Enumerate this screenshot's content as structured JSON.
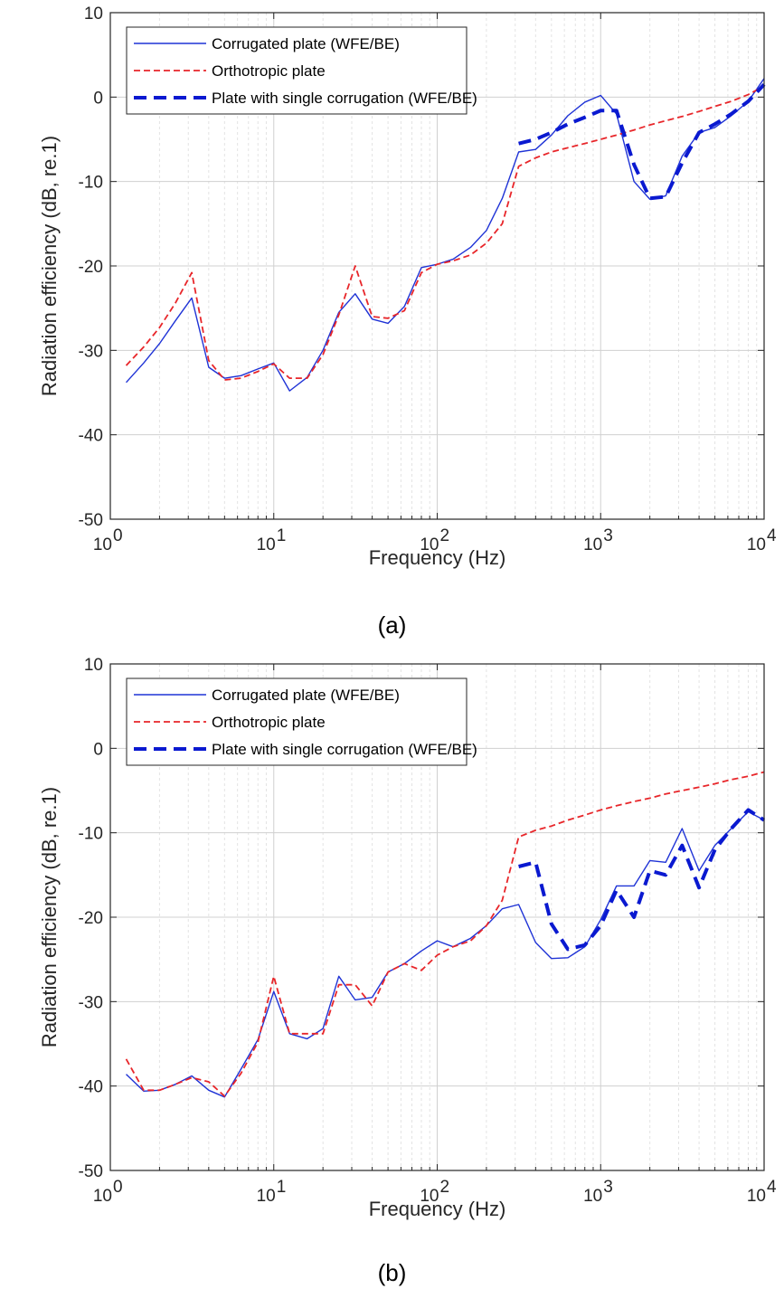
{
  "chart_data": [
    {
      "type": "line",
      "panel_label": "(a)",
      "xlabel": "Frequency (Hz)",
      "ylabel": "Radiation efficiency (dB, re.1)",
      "xscale": "log",
      "xlim": [
        1,
        10000
      ],
      "ylim": [
        -50,
        10
      ],
      "xtick_bases": [
        "10",
        "10",
        "10",
        "10",
        "10"
      ],
      "xtick_exps": [
        "0",
        "1",
        "2",
        "3",
        "4"
      ],
      "yticks": [
        "10",
        "0",
        "-10",
        "-20",
        "-30",
        "-40",
        "-50"
      ],
      "grid": true,
      "legend_position": "top-left",
      "series": [
        {
          "name": "Corrugated plate (WFE/BE)",
          "color": "#1f33d6",
          "style": "solid",
          "x": [
            1.25,
            1.6,
            2,
            2.5,
            3.15,
            4,
            5,
            6.3,
            8,
            10,
            12.5,
            16,
            20,
            25,
            31.5,
            40,
            50,
            63,
            80,
            100,
            125,
            160,
            200,
            250,
            315,
            400,
            500,
            630,
            800,
            1000,
            1250,
            1600,
            2000,
            2500,
            3150,
            4000,
            5000,
            6300,
            8000,
            10000
          ],
          "y": [
            -33.8,
            -31.5,
            -29.2,
            -26.5,
            -23.8,
            -32,
            -33.3,
            -33,
            -32.2,
            -31.5,
            -34.8,
            -33.2,
            -30,
            -25.5,
            -23.3,
            -26.3,
            -26.8,
            -24.8,
            -20.2,
            -19.8,
            -19.2,
            -17.8,
            -15.8,
            -12,
            -6.5,
            -6.2,
            -4.5,
            -2.2,
            -0.6,
            0.2,
            -2,
            -10,
            -12.1,
            -11.7,
            -7,
            -4.2,
            -3.6,
            -2.2,
            -0.5,
            2.2
          ]
        },
        {
          "name": "Orthotropic plate",
          "color": "#e8262a",
          "style": "dashed",
          "x": [
            1.25,
            1.6,
            2,
            2.5,
            3.15,
            4,
            5,
            6.3,
            8,
            10,
            12.5,
            16,
            20,
            25,
            31.5,
            40,
            50,
            63,
            80,
            100,
            125,
            160,
            200,
            250,
            315,
            400,
            500,
            630,
            800,
            1000,
            1250,
            1600,
            2000,
            2500,
            3150,
            4000,
            5000,
            6300,
            8000,
            10000
          ],
          "y": [
            -31.8,
            -29.6,
            -27.3,
            -24.4,
            -20.8,
            -31.2,
            -33.5,
            -33.3,
            -32.5,
            -31.6,
            -33.3,
            -33.3,
            -30.5,
            -25.8,
            -20,
            -26,
            -26.2,
            -25.3,
            -20.8,
            -19.8,
            -19.4,
            -18.7,
            -17.3,
            -15,
            -8.2,
            -7.2,
            -6.5,
            -6,
            -5.5,
            -5,
            -4.5,
            -3.9,
            -3.3,
            -2.8,
            -2.3,
            -1.7,
            -1.1,
            -0.5,
            0.3,
            1.3
          ]
        },
        {
          "name": "Plate with single corrugation (WFE/BE)",
          "color": "#0a19d0",
          "style": "thick-dashed",
          "x": [
            315,
            400,
            500,
            630,
            800,
            1000,
            1250,
            1600,
            2000,
            2500,
            3150,
            4000,
            5000,
            6300,
            8000,
            10000
          ],
          "y": [
            -5.5,
            -5,
            -4.2,
            -3.2,
            -2.4,
            -1.6,
            -1.6,
            -8,
            -12,
            -11.8,
            -7.8,
            -4.2,
            -3.2,
            -2,
            -0.5,
            1.5
          ]
        }
      ]
    },
    {
      "type": "line",
      "panel_label": "(b)",
      "xlabel": "Frequency (Hz)",
      "ylabel": "Radiation efficiency (dB, re.1)",
      "xscale": "log",
      "xlim": [
        1,
        10000
      ],
      "ylim": [
        -50,
        10
      ],
      "xtick_bases": [
        "10",
        "10",
        "10",
        "10",
        "10"
      ],
      "xtick_exps": [
        "0",
        "1",
        "2",
        "3",
        "4"
      ],
      "yticks": [
        "10",
        "0",
        "-10",
        "-20",
        "-30",
        "-40",
        "-50"
      ],
      "grid": true,
      "legend_position": "top-left",
      "series": [
        {
          "name": "Corrugated plate (WFE/BE)",
          "color": "#1f33d6",
          "style": "solid",
          "x": [
            1.25,
            1.6,
            2,
            2.5,
            3.15,
            4,
            5,
            6.3,
            8,
            10,
            12.5,
            16,
            20,
            25,
            31.5,
            40,
            50,
            63,
            80,
            100,
            125,
            160,
            200,
            250,
            315,
            400,
            500,
            630,
            800,
            1000,
            1250,
            1600,
            2000,
            2500,
            3150,
            4000,
            5000,
            6300,
            8000,
            10000
          ],
          "y": [
            -38.6,
            -40.6,
            -40.5,
            -39.8,
            -38.8,
            -40.5,
            -41.3,
            -38,
            -34.5,
            -28.8,
            -33.8,
            -34.4,
            -33.2,
            -27,
            -29.8,
            -29.5,
            -26.5,
            -25.5,
            -24,
            -22.8,
            -23.5,
            -22.5,
            -21,
            -19,
            -18.5,
            -23,
            -24.9,
            -24.8,
            -23.5,
            -20.3,
            -16.3,
            -16.3,
            -13.3,
            -13.5,
            -9.5,
            -14.5,
            -11.5,
            -9.5,
            -7.5,
            -8.5
          ]
        },
        {
          "name": "Orthotropic plate",
          "color": "#e8262a",
          "style": "dashed",
          "x": [
            1.25,
            1.6,
            2,
            2.5,
            3.15,
            4,
            5,
            6.3,
            8,
            10,
            12.5,
            16,
            20,
            25,
            31.5,
            40,
            50,
            63,
            80,
            100,
            125,
            160,
            200,
            250,
            315,
            400,
            500,
            630,
            800,
            1000,
            1250,
            1600,
            2000,
            2500,
            3150,
            4000,
            5000,
            6300,
            8000,
            10000
          ],
          "y": [
            -36.8,
            -40.5,
            -40.5,
            -39.8,
            -39,
            -39.5,
            -41.2,
            -38.5,
            -34.8,
            -27,
            -33.8,
            -33.8,
            -33.8,
            -28,
            -28,
            -30.5,
            -26.5,
            -25.5,
            -26.3,
            -24.5,
            -23.5,
            -22.8,
            -21,
            -18,
            -10.5,
            -9.7,
            -9.2,
            -8.5,
            -7.9,
            -7.3,
            -6.8,
            -6.3,
            -5.9,
            -5.4,
            -5,
            -4.6,
            -4.2,
            -3.7,
            -3.3,
            -2.8
          ]
        },
        {
          "name": "Plate with single corrugation (WFE/BE)",
          "color": "#0a19d0",
          "style": "thick-dashed",
          "x": [
            315,
            400,
            500,
            630,
            800,
            1000,
            1250,
            1600,
            2000,
            2500,
            3150,
            4000,
            5000,
            6300,
            8000,
            10000
          ],
          "y": [
            -14,
            -13.5,
            -20.8,
            -23.8,
            -23.3,
            -21,
            -16.8,
            -20,
            -14.5,
            -15,
            -11.5,
            -16.5,
            -12,
            -9.5,
            -7.3,
            -8.5
          ]
        }
      ]
    }
  ]
}
